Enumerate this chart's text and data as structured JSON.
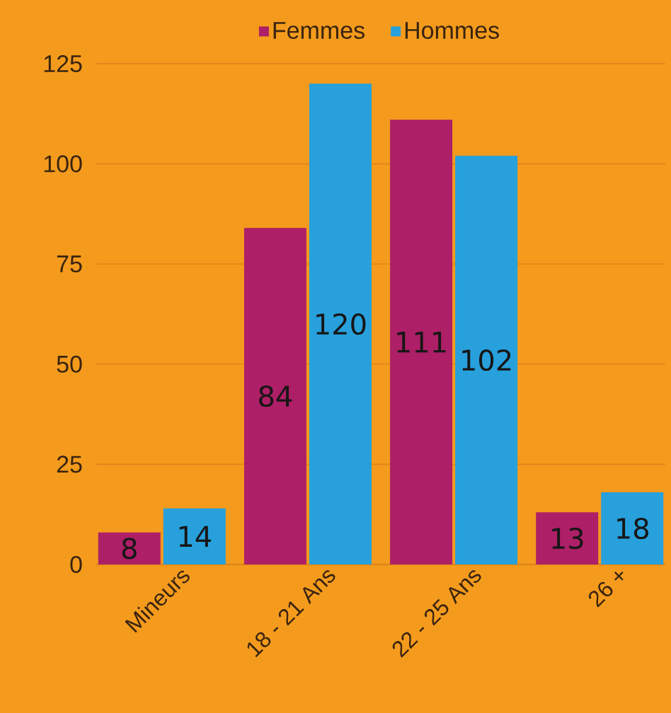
{
  "chart_data": {
    "type": "bar",
    "categories": [
      "Mineurs",
      "18 - 21 Ans",
      "22 - 25 Ans",
      "26 +"
    ],
    "series": [
      {
        "name": "Femmes",
        "color": "#ad1f66",
        "values": [
          8,
          84,
          111,
          13
        ]
      },
      {
        "name": "Hommes",
        "color": "#27a0dc",
        "values": [
          14,
          120,
          102,
          18
        ]
      }
    ],
    "ylim": [
      0,
      125
    ],
    "yticks": [
      0,
      25,
      50,
      75,
      100,
      125
    ],
    "grid": "y",
    "legend": "top",
    "data_labels": true
  }
}
